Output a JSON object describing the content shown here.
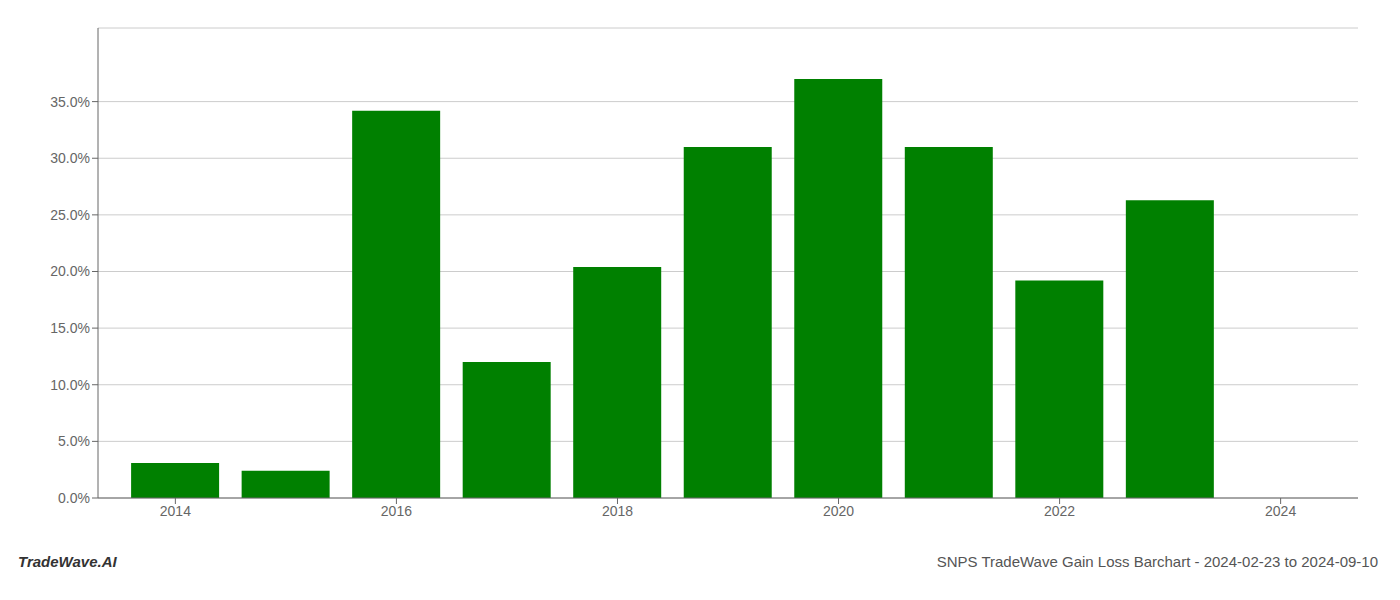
{
  "chart_data": {
    "type": "bar",
    "title": "SNPS TradeWave Gain Loss Barchart - 2024-02-23 to 2024-09-10",
    "annotations": [
      "TradeWave.AI"
    ],
    "x": [
      2014,
      2015,
      2016,
      2017,
      2018,
      2019,
      2020,
      2021,
      2022,
      2023
    ],
    "values": [
      0.031,
      0.024,
      0.342,
      0.12,
      0.204,
      0.31,
      0.37,
      0.31,
      0.192,
      0.263
    ],
    "color": "#008000",
    "xlim": [
      2013.3,
      2024.7
    ],
    "xticks": [
      2014,
      2016,
      2018,
      2020,
      2022,
      2024
    ],
    "ylim": [
      0,
      0.415
    ],
    "yticks": [
      {
        "value": 0.0,
        "label": "0.0%"
      },
      {
        "value": 0.05,
        "label": "5.0%"
      },
      {
        "value": 0.1,
        "label": "10.0%"
      },
      {
        "value": 0.15,
        "label": "15.0%"
      },
      {
        "value": 0.2,
        "label": "20.0%"
      },
      {
        "value": 0.25,
        "label": "25.0%"
      },
      {
        "value": 0.3,
        "label": "30.0%"
      },
      {
        "value": 0.35,
        "label": "35.0%"
      }
    ],
    "grid": true
  }
}
